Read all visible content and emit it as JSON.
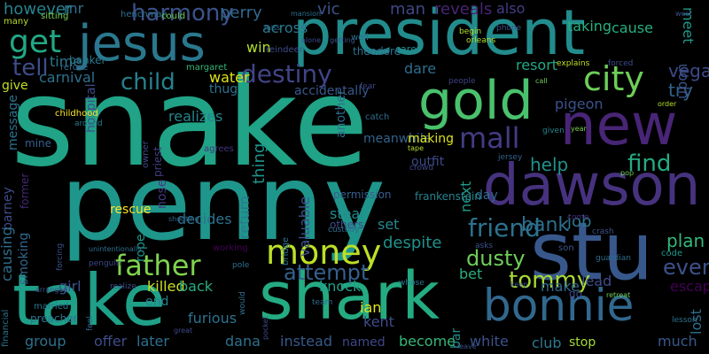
{
  "words": [
    {
      "text": "snake",
      "color": "#20a386"
    },
    {
      "text": "penny",
      "color": "#1f968b"
    },
    {
      "text": "shark",
      "color": "#25ab82"
    },
    {
      "text": "take",
      "color": "#1fa088"
    },
    {
      "text": "president",
      "color": "#228c8d"
    },
    {
      "text": "stu",
      "color": "#38588c"
    },
    {
      "text": "jesus",
      "color": "#2a788e"
    },
    {
      "text": "dawson",
      "color": "#46327e"
    },
    {
      "text": "gold",
      "color": "#4ac16d"
    },
    {
      "text": "new",
      "color": "#482576"
    },
    {
      "text": "bonnie",
      "color": "#31688e"
    },
    {
      "text": "money",
      "color": "#bddf26"
    },
    {
      "text": "father",
      "color": "#7fd34e"
    },
    {
      "text": "city",
      "color": "#6ece58"
    },
    {
      "text": "mall",
      "color": "#443b84"
    },
    {
      "text": "find",
      "color": "#25ab82"
    },
    {
      "text": "harmony",
      "color": "#3b528b"
    },
    {
      "text": "destiny",
      "color": "#414487"
    },
    {
      "text": "get",
      "color": "#22a884"
    },
    {
      "text": "child",
      "color": "#453781"
    },
    {
      "text": "friend",
      "color": "#26828e"
    },
    {
      "text": "dusty",
      "color": "#2c728e"
    },
    {
      "text": "tommy",
      "color": "#6ece58"
    },
    {
      "text": "attempt",
      "color": "#1f9e89"
    },
    {
      "text": "bank",
      "color": "#35608d"
    },
    {
      "text": "job",
      "color": "#a8db34"
    },
    {
      "text": "plan",
      "color": "#2e6e8e"
    },
    {
      "text": "eventually",
      "color": "#2a788e"
    },
    {
      "text": "vega",
      "color": "#35b779"
    },
    {
      "text": "try",
      "color": "#3b528b"
    },
    {
      "text": "help",
      "color": "#3e4a89"
    },
    {
      "text": "tell",
      "color": "#33638d"
    },
    {
      "text": "however",
      "color": "#21918c"
    },
    {
      "text": "mr",
      "color": "#3e4c8a"
    },
    {
      "text": "perry",
      "color": "#26828e"
    },
    {
      "text": "across",
      "color": "#2d708e"
    },
    {
      "text": "vic",
      "color": "#31688e"
    },
    {
      "text": "man",
      "color": "#2a788e"
    },
    {
      "text": "reveals",
      "color": "#3b528b"
    },
    {
      "text": "also",
      "color": "#3f4788"
    },
    {
      "text": "taking",
      "color": "#482475"
    },
    {
      "text": "cause",
      "color": "#433e85"
    },
    {
      "text": "meet",
      "color": "#29af7f"
    },
    {
      "text": "time",
      "color": "#26ad81"
    },
    {
      "text": "carnival",
      "color": "#1e9b8a"
    },
    {
      "text": "give",
      "color": "#2a788e"
    },
    {
      "text": "win",
      "color": "#2d708e"
    },
    {
      "text": "water",
      "color": "#c2df23"
    },
    {
      "text": "thug",
      "color": "#b5de2b"
    },
    {
      "text": "dare",
      "color": "#dde318"
    },
    {
      "text": "resort",
      "color": "#2c728e"
    },
    {
      "text": "pigeon",
      "color": "#2e6e8e"
    },
    {
      "text": "upon",
      "color": "#22a884"
    },
    {
      "text": "realizes",
      "color": "#3b528b"
    },
    {
      "text": "thing",
      "color": "#3a548c"
    },
    {
      "text": "return",
      "color": "#25858e"
    },
    {
      "text": "accidentally",
      "color": "#1f968b"
    },
    {
      "text": "another",
      "color": "#2a788e"
    },
    {
      "text": "meanwhile",
      "color": "#38588c"
    },
    {
      "text": "making",
      "color": "#2d708e"
    },
    {
      "text": "outfit",
      "color": "#33638d"
    },
    {
      "text": "nose",
      "color": "#dde318"
    },
    {
      "text": "hospital",
      "color": "#3e4a89"
    },
    {
      "text": "message",
      "color": "#443a83"
    },
    {
      "text": "mine",
      "color": "#3e4c8a"
    },
    {
      "text": "barney",
      "color": "#2c728e"
    },
    {
      "text": "former",
      "color": "#35608d"
    },
    {
      "text": "causing",
      "color": "#3e4c8a"
    },
    {
      "text": "smoking",
      "color": "#482878"
    },
    {
      "text": "rescue",
      "color": "#2e6e8e"
    },
    {
      "text": "decides",
      "color": "#31688e"
    },
    {
      "text": "rope",
      "color": "#fde725"
    },
    {
      "text": "steal",
      "color": "#2c728e"
    },
    {
      "text": "valuable",
      "color": "#1f968b"
    },
    {
      "text": "set",
      "color": "#228c8d"
    },
    {
      "text": "despite",
      "color": "#3b528b"
    },
    {
      "text": "next",
      "color": "#24878e"
    },
    {
      "text": "day",
      "color": "#21918c"
    },
    {
      "text": "bet",
      "color": "#1e9b8a"
    },
    {
      "text": "lead",
      "color": "#306a8e"
    },
    {
      "text": "make",
      "color": "#29af7f"
    },
    {
      "text": "escape",
      "color": "#3e4c8a"
    },
    {
      "text": "lost",
      "color": "#31688e"
    },
    {
      "text": "girl",
      "color": "#440154"
    },
    {
      "text": "killed",
      "color": "#2d708e"
    },
    {
      "text": "back",
      "color": "#3b528b"
    },
    {
      "text": "end",
      "color": "#c8e020"
    },
    {
      "text": "furious",
      "color": "#27ad81"
    },
    {
      "text": "knock",
      "color": "#26828e"
    },
    {
      "text": "ian",
      "color": "#2c728e"
    },
    {
      "text": "kent",
      "color": "#1fa088"
    },
    {
      "text": "bar",
      "color": "#e5e419"
    },
    {
      "text": "go",
      "color": "#3e4c8a"
    },
    {
      "text": "group",
      "color": "#228c8d"
    },
    {
      "text": "offer",
      "color": "#3f4788"
    },
    {
      "text": "later",
      "color": "#2d708e"
    },
    {
      "text": "dana",
      "color": "#3e4c8a"
    },
    {
      "text": "instead",
      "color": "#2d708e"
    },
    {
      "text": "named",
      "color": "#2c728e"
    },
    {
      "text": "become",
      "color": "#38588c"
    },
    {
      "text": "white",
      "color": "#3f4788"
    },
    {
      "text": "club",
      "color": "#35b779"
    },
    {
      "text": "stop",
      "color": "#3b528b"
    },
    {
      "text": "much",
      "color": "#2a788e"
    },
    {
      "text": "theodore",
      "color": "#a5db36"
    },
    {
      "text": "well",
      "color": "#38588c"
    },
    {
      "text": "care",
      "color": "#2d708e"
    },
    {
      "text": "begin",
      "color": "#2d708e"
    },
    {
      "text": "orleans",
      "color": "#228c8d"
    },
    {
      "text": "phone",
      "color": "#b5de2b"
    },
    {
      "text": "many",
      "color": "#b5de2b"
    },
    {
      "text": "sitting",
      "color": "#3b528b"
    },
    {
      "text": "banker",
      "color": "#b5de2b"
    },
    {
      "text": "refuse",
      "color": "#7ad151"
    },
    {
      "text": "henchman",
      "color": "#2a788e"
    },
    {
      "text": "could",
      "color": "#31688e"
    },
    {
      "text": "margaret",
      "color": "#2d708e"
    },
    {
      "text": "explains",
      "color": "#6ece58"
    },
    {
      "text": "forced",
      "color": "#35b779"
    },
    {
      "text": "fear",
      "color": "#c2df23"
    },
    {
      "text": "call",
      "color": "#3e4c8a"
    },
    {
      "text": "people",
      "color": "#3f4788"
    },
    {
      "text": "childhood",
      "color": "#6ece58"
    },
    {
      "text": "around",
      "color": "#414487"
    },
    {
      "text": "agrees",
      "color": "#fde725"
    },
    {
      "text": "catch",
      "color": "#2a788e"
    },
    {
      "text": "tape",
      "color": "#46337f"
    },
    {
      "text": "given",
      "color": "#2e6e8e"
    },
    {
      "text": "order",
      "color": "#b5de2b"
    },
    {
      "text": "year",
      "color": "#25858e"
    },
    {
      "text": "jersey",
      "color": "#b5de2b"
    },
    {
      "text": "frankenstein",
      "color": "#7ad151"
    },
    {
      "text": "crowd",
      "color": "#33638d"
    },
    {
      "text": "pop",
      "color": "#25858e"
    },
    {
      "text": "owner",
      "color": "#3f4788"
    },
    {
      "text": "priest",
      "color": "#6ece58"
    },
    {
      "text": "shooting",
      "color": "#3e4c8a"
    },
    {
      "text": "bridge",
      "color": "#433e85"
    },
    {
      "text": "custody",
      "color": "#31688e"
    },
    {
      "text": "permission",
      "color": "#2c728e"
    },
    {
      "text": "others",
      "color": "#2e6e8e"
    },
    {
      "text": "asks",
      "color": "#35608d"
    },
    {
      "text": "come",
      "color": "#3e4c8a"
    },
    {
      "text": "crash",
      "color": "#3b528b"
    },
    {
      "text": "son",
      "color": "#482878"
    },
    {
      "text": "guardian",
      "color": "#3b528b"
    },
    {
      "text": "keep",
      "color": "#3b528b"
    },
    {
      "text": "code",
      "color": "#2e6e8e"
    },
    {
      "text": "working",
      "color": "#3b528b"
    },
    {
      "text": "penguin",
      "color": "#1f968b"
    },
    {
      "text": "realize",
      "color": "#440154"
    },
    {
      "text": "pole",
      "color": "#3f4788"
    },
    {
      "text": "team",
      "color": "#3e4c8a"
    },
    {
      "text": "leave",
      "color": "#2d708e"
    },
    {
      "text": "retreat",
      "color": "#31688e"
    },
    {
      "text": "financial",
      "color": "#3b528b"
    },
    {
      "text": "married",
      "color": "#6ece58"
    },
    {
      "text": "preacher",
      "color": "#2c728e"
    },
    {
      "text": "great",
      "color": "#2a788e"
    },
    {
      "text": "feel",
      "color": "#2c728e"
    },
    {
      "text": "forcing",
      "color": "#3f4788"
    },
    {
      "text": "arranged",
      "color": "#31688e"
    },
    {
      "text": "unintentionally",
      "color": "#3b528b"
    },
    {
      "text": "whose",
      "color": "#3b528b"
    },
    {
      "text": "lesson",
      "color": "#2d708e"
    },
    {
      "text": "would",
      "color": "#2a788e"
    },
    {
      "text": "pocket",
      "color": "#2c728e"
    },
    {
      "text": "west",
      "color": "#2e6e8e"
    },
    {
      "text": "mansion",
      "color": "#3e4c8a"
    },
    {
      "text": "alone",
      "color": "#3b528b"
    },
    {
      "text": "getting",
      "color": "#2e6e8e"
    },
    {
      "text": "miss",
      "color": "#3e4c8a"
    },
    {
      "text": "reindeer",
      "color": "#3b528b"
    },
    {
      "text": "sneak",
      "color": "#2e6e8e"
    },
    {
      "text": "star",
      "color": "#3e4c8a"
    }
  ]
}
